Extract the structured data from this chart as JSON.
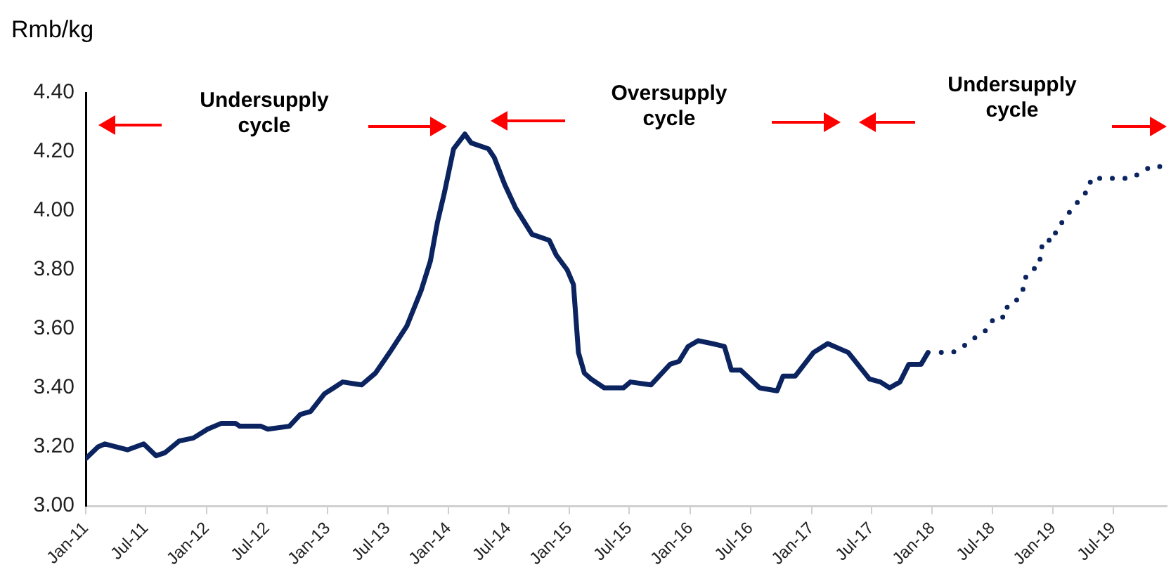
{
  "chart_data": {
    "type": "line",
    "ylabel": "Rmb/kg",
    "marker": "none",
    "legend": false,
    "grid": false,
    "xlim": [
      "2011-01-01",
      "2019-12-10"
    ],
    "xticks": [
      {
        "value": "2011-01-01",
        "label": "Jan-11"
      },
      {
        "value": "2011-07-01",
        "label": "Jul-11"
      },
      {
        "value": "2012-01-01",
        "label": "Jan-12"
      },
      {
        "value": "2012-07-01",
        "label": "Jul-12"
      },
      {
        "value": "2013-01-01",
        "label": "Jan-13"
      },
      {
        "value": "2013-07-01",
        "label": "Jul-13"
      },
      {
        "value": "2014-01-01",
        "label": "Jan-14"
      },
      {
        "value": "2014-07-01",
        "label": "Jul-14"
      },
      {
        "value": "2015-01-01",
        "label": "Jan-15"
      },
      {
        "value": "2015-07-01",
        "label": "Jul-15"
      },
      {
        "value": "2016-01-01",
        "label": "Jan-16"
      },
      {
        "value": "2016-07-01",
        "label": "Jul-16"
      },
      {
        "value": "2017-01-01",
        "label": "Jan-17"
      },
      {
        "value": "2017-07-01",
        "label": "Jul-17"
      },
      {
        "value": "2018-01-01",
        "label": "Jan-18"
      },
      {
        "value": "2018-07-01",
        "label": "Jul-18"
      },
      {
        "value": "2019-01-01",
        "label": "Jan-19"
      },
      {
        "value": "2019-07-01",
        "label": "Jul-19"
      }
    ],
    "ylim": [
      3.0,
      4.4
    ],
    "yticks": [
      {
        "value": 3.0,
        "label": "3.00"
      },
      {
        "value": 3.2,
        "label": "3.20"
      },
      {
        "value": 3.4,
        "label": "3.40"
      },
      {
        "value": 3.6,
        "label": "3.60"
      },
      {
        "value": 3.8,
        "label": "3.80"
      },
      {
        "value": 4.0,
        "label": "4.00"
      },
      {
        "value": 4.2,
        "label": "4.20"
      },
      {
        "value": 4.4,
        "label": "4.40"
      }
    ],
    "annotations": [
      "Undersupply\ncycle",
      "Oversupply\ncycle",
      "Undersupply\ncycle"
    ],
    "series": [
      {
        "color": "#0b2460",
        "line_style": "solid",
        "x": [
          "2011-01-01",
          "2011-02-07",
          "2011-02-28",
          "2011-05-07",
          "2011-06-25",
          "2011-08-01",
          "2011-08-28",
          "2011-10-10",
          "2011-11-22",
          "2012-01-04",
          "2012-02-15",
          "2012-03-28",
          "2012-04-10",
          "2012-06-13",
          "2012-07-04",
          "2012-09-07",
          "2012-10-10",
          "2012-11-10",
          "2012-12-22",
          "2013-01-19",
          "2013-02-15",
          "2013-04-13",
          "2013-05-25",
          "2013-07-07",
          "2013-08-28",
          "2013-10-10",
          "2013-11-07",
          "2013-11-28",
          "2013-12-19",
          "2014-01-16",
          "2014-02-19",
          "2014-03-10",
          "2014-05-01",
          "2014-05-19",
          "2014-06-19",
          "2014-07-22",
          "2014-09-10",
          "2014-11-01",
          "2014-11-22",
          "2014-12-25",
          "2015-01-13",
          "2015-01-28",
          "2015-02-15",
          "2015-03-07",
          "2015-04-16",
          "2015-06-13",
          "2015-07-04",
          "2015-09-04",
          "2015-11-01",
          "2015-11-28",
          "2015-12-25",
          "2016-01-25",
          "2016-03-07",
          "2016-04-13",
          "2016-05-04",
          "2016-06-01",
          "2016-07-28",
          "2016-09-19",
          "2016-10-07",
          "2016-11-13",
          "2017-01-07",
          "2017-02-19",
          "2017-04-01",
          "2017-04-22",
          "2017-06-25",
          "2017-07-28",
          "2017-08-25",
          "2017-09-25",
          "2017-10-22",
          "2017-11-28",
          "2017-12-19"
        ],
        "values": [
          3.16,
          3.2,
          3.21,
          3.19,
          3.21,
          3.17,
          3.18,
          3.22,
          3.23,
          3.26,
          3.28,
          3.28,
          3.27,
          3.27,
          3.26,
          3.27,
          3.31,
          3.32,
          3.38,
          3.4,
          3.42,
          3.41,
          3.45,
          3.52,
          3.61,
          3.73,
          3.83,
          3.96,
          4.06,
          4.21,
          4.26,
          4.23,
          4.21,
          4.18,
          4.09,
          4.01,
          3.92,
          3.9,
          3.85,
          3.8,
          3.75,
          3.52,
          3.45,
          3.43,
          3.4,
          3.4,
          3.42,
          3.41,
          3.48,
          3.49,
          3.54,
          3.56,
          3.55,
          3.54,
          3.46,
          3.46,
          3.4,
          3.39,
          3.44,
          3.44,
          3.52,
          3.55,
          3.53,
          3.52,
          3.43,
          3.42,
          3.4,
          3.42,
          3.48,
          3.48,
          3.52
        ]
      },
      {
        "color": "#0b2460",
        "line_style": "dotted",
        "x": [
          "2018-01-28",
          "2018-03-04",
          "2018-04-04",
          "2018-04-28",
          "2018-05-22",
          "2018-06-19",
          "2018-07-07",
          "2018-08-10",
          "2018-08-16",
          "2018-09-16",
          "2018-10-01",
          "2018-10-07",
          "2018-10-25",
          "2018-11-19",
          "2018-11-25",
          "2018-12-01",
          "2019-01-04",
          "2019-01-10",
          "2019-02-04",
          "2019-02-22",
          "2019-03-10",
          "2019-03-28",
          "2019-04-19",
          "2019-04-25",
          "2019-06-04",
          "2019-07-13",
          "2019-08-22",
          "2019-09-25",
          "2019-10-22",
          "2019-12-01"
        ],
        "values": [
          3.52,
          3.52,
          3.54,
          3.56,
          3.58,
          3.6,
          3.64,
          3.64,
          3.68,
          3.7,
          3.73,
          3.77,
          3.8,
          3.81,
          3.86,
          3.9,
          3.9,
          3.94,
          3.97,
          4.0,
          4.02,
          4.05,
          4.07,
          4.11,
          4.11,
          4.11,
          4.11,
          4.13,
          4.15,
          4.15
        ]
      }
    ]
  }
}
